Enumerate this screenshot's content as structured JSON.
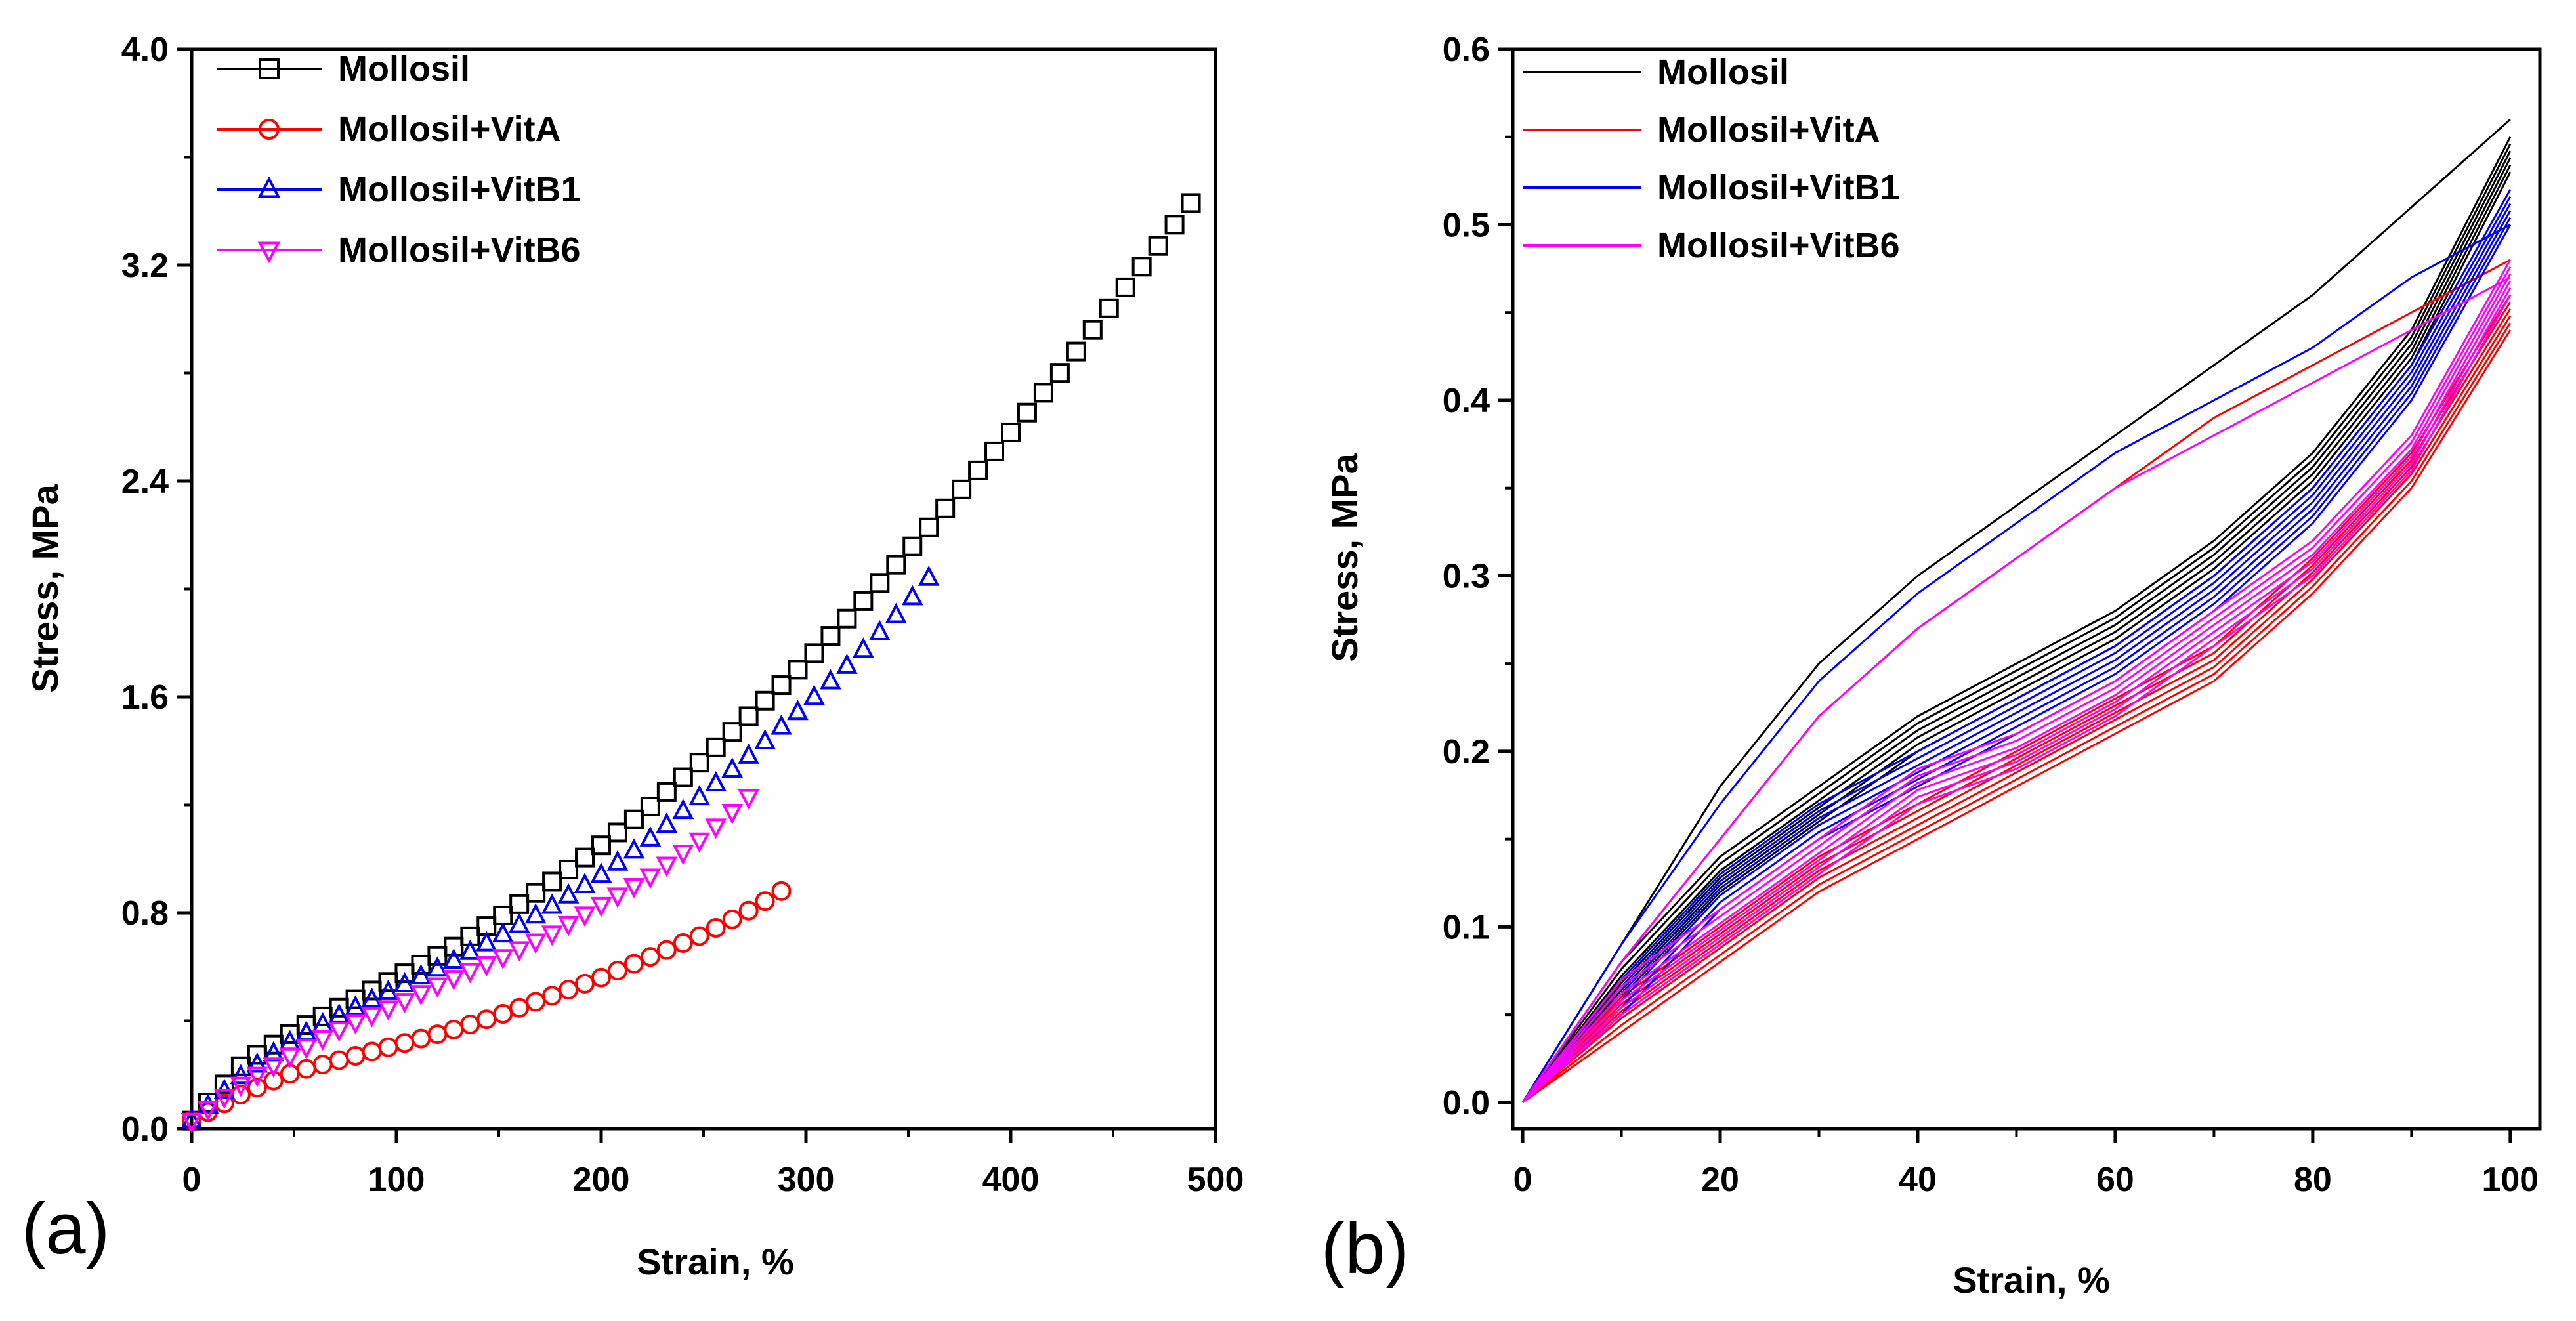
{
  "chart_data": [
    {
      "panel_label": "(a)",
      "type": "scatter",
      "xlabel": "Strain, %",
      "ylabel": "Stress, MPa",
      "xlim": [
        0,
        500
      ],
      "ylim": [
        0,
        4.0
      ],
      "xticks": [
        0,
        100,
        200,
        300,
        400,
        500
      ],
      "xtick_labels": [
        "0",
        "100",
        "200",
        "300",
        "400",
        "500"
      ],
      "yticks": [
        0,
        0.8,
        1.6,
        2.4,
        3.2,
        4.0
      ],
      "ytick_labels": [
        "0.0",
        "0.8",
        "1.6",
        "2.4",
        "3.2",
        "4.0"
      ],
      "legend_position": "top-left",
      "series": [
        {
          "name": "Mollosil",
          "marker": "square",
          "color": "#000000",
          "x": [
            0,
            25,
            50,
            75,
            100,
            125,
            150,
            175,
            200,
            225,
            250,
            275,
            300,
            325,
            350,
            375,
            400,
            425,
            450,
            475,
            490
          ],
          "y": [
            0.03,
            0.24,
            0.36,
            0.46,
            0.56,
            0.66,
            0.78,
            0.91,
            1.05,
            1.2,
            1.37,
            1.55,
            1.73,
            1.93,
            2.14,
            2.36,
            2.58,
            2.81,
            3.06,
            3.3,
            3.45
          ]
        },
        {
          "name": "Mollosil+VitA",
          "marker": "circle",
          "color": "#ff0000",
          "x": [
            0,
            25,
            50,
            75,
            100,
            125,
            150,
            175,
            200,
            225,
            250,
            275,
            290
          ],
          "y": [
            0.03,
            0.13,
            0.21,
            0.26,
            0.31,
            0.36,
            0.42,
            0.49,
            0.56,
            0.64,
            0.72,
            0.82,
            0.89
          ]
        },
        {
          "name": "Mollosil+VitB1",
          "marker": "triangle-up",
          "color": "#0000ff",
          "x": [
            0,
            25,
            50,
            75,
            100,
            125,
            150,
            175,
            200,
            225,
            250,
            275,
            300,
            325,
            350,
            360
          ],
          "y": [
            0.03,
            0.2,
            0.33,
            0.43,
            0.52,
            0.61,
            0.71,
            0.82,
            0.94,
            1.08,
            1.24,
            1.4,
            1.57,
            1.75,
            1.95,
            2.04
          ]
        },
        {
          "name": "Mollosil+VitB6",
          "marker": "triangle-down",
          "color": "#ff00ff",
          "x": [
            0,
            25,
            50,
            75,
            100,
            125,
            150,
            175,
            200,
            225,
            250,
            275
          ],
          "y": [
            0.03,
            0.17,
            0.28,
            0.38,
            0.46,
            0.55,
            0.63,
            0.72,
            0.83,
            0.94,
            1.08,
            1.25
          ]
        }
      ]
    },
    {
      "panel_label": "(b)",
      "type": "line",
      "xlabel": "Strain, %",
      "ylabel": "Stress, MPa",
      "xlim": [
        -1,
        103
      ],
      "ylim": [
        -0.015,
        0.6
      ],
      "xticks": [
        0,
        20,
        40,
        60,
        80,
        100
      ],
      "xtick_labels": [
        "0",
        "20",
        "40",
        "60",
        "80",
        "100"
      ],
      "yticks": [
        0.0,
        0.1,
        0.2,
        0.3,
        0.4,
        0.5,
        0.6
      ],
      "ytick_labels": [
        "0.0",
        "0.1",
        "0.2",
        "0.3",
        "0.4",
        "0.5",
        "0.6"
      ],
      "legend_position": "top-left",
      "series": [
        {
          "name": "Mollosil",
          "color": "#000000",
          "x": [
            0,
            10,
            20,
            30,
            40,
            50,
            60,
            70,
            80,
            90,
            100
          ],
          "loading_first_cycle": [
            0,
            0.09,
            0.18,
            0.25,
            0.3,
            0.34,
            0.38,
            0.42,
            0.46,
            0.51,
            0.56
          ],
          "unloading_cycles": [
            0,
            0.07,
            0.13,
            0.17,
            0.21,
            0.24,
            0.27,
            0.31,
            0.36,
            0.43,
            0.54
          ]
        },
        {
          "name": "Mollosil+VitA",
          "color": "#ff0000",
          "x": [
            0,
            10,
            20,
            30,
            40,
            50,
            60,
            70,
            80,
            90,
            100
          ],
          "loading_first_cycle": [
            0,
            0.08,
            0.15,
            0.22,
            0.27,
            0.31,
            0.35,
            0.39,
            0.42,
            0.45,
            0.48
          ],
          "unloading_cycles": [
            0,
            0.05,
            0.09,
            0.13,
            0.16,
            0.19,
            0.22,
            0.25,
            0.3,
            0.36,
            0.45
          ]
        },
        {
          "name": "Mollosil+VitB1",
          "color": "#0000ff",
          "x": [
            0,
            10,
            20,
            30,
            40,
            50,
            60,
            70,
            80,
            90,
            100
          ],
          "loading_first_cycle": [
            0,
            0.09,
            0.17,
            0.24,
            0.29,
            0.33,
            0.37,
            0.4,
            0.43,
            0.47,
            0.5
          ],
          "unloading_cycles": [
            0,
            0.06,
            0.12,
            0.16,
            0.19,
            0.22,
            0.25,
            0.29,
            0.34,
            0.41,
            0.51
          ]
        },
        {
          "name": "Mollosil+VitB6",
          "color": "#ff00ff",
          "x": [
            0,
            10,
            20,
            30,
            40,
            50,
            60,
            70,
            80,
            90,
            100
          ],
          "loading_first_cycle": [
            0,
            0.08,
            0.15,
            0.22,
            0.27,
            0.31,
            0.35,
            0.38,
            0.41,
            0.44,
            0.47
          ],
          "unloading_cycles": [
            0,
            0.06,
            0.1,
            0.14,
            0.18,
            0.2,
            0.23,
            0.27,
            0.31,
            0.37,
            0.47
          ]
        }
      ]
    }
  ]
}
